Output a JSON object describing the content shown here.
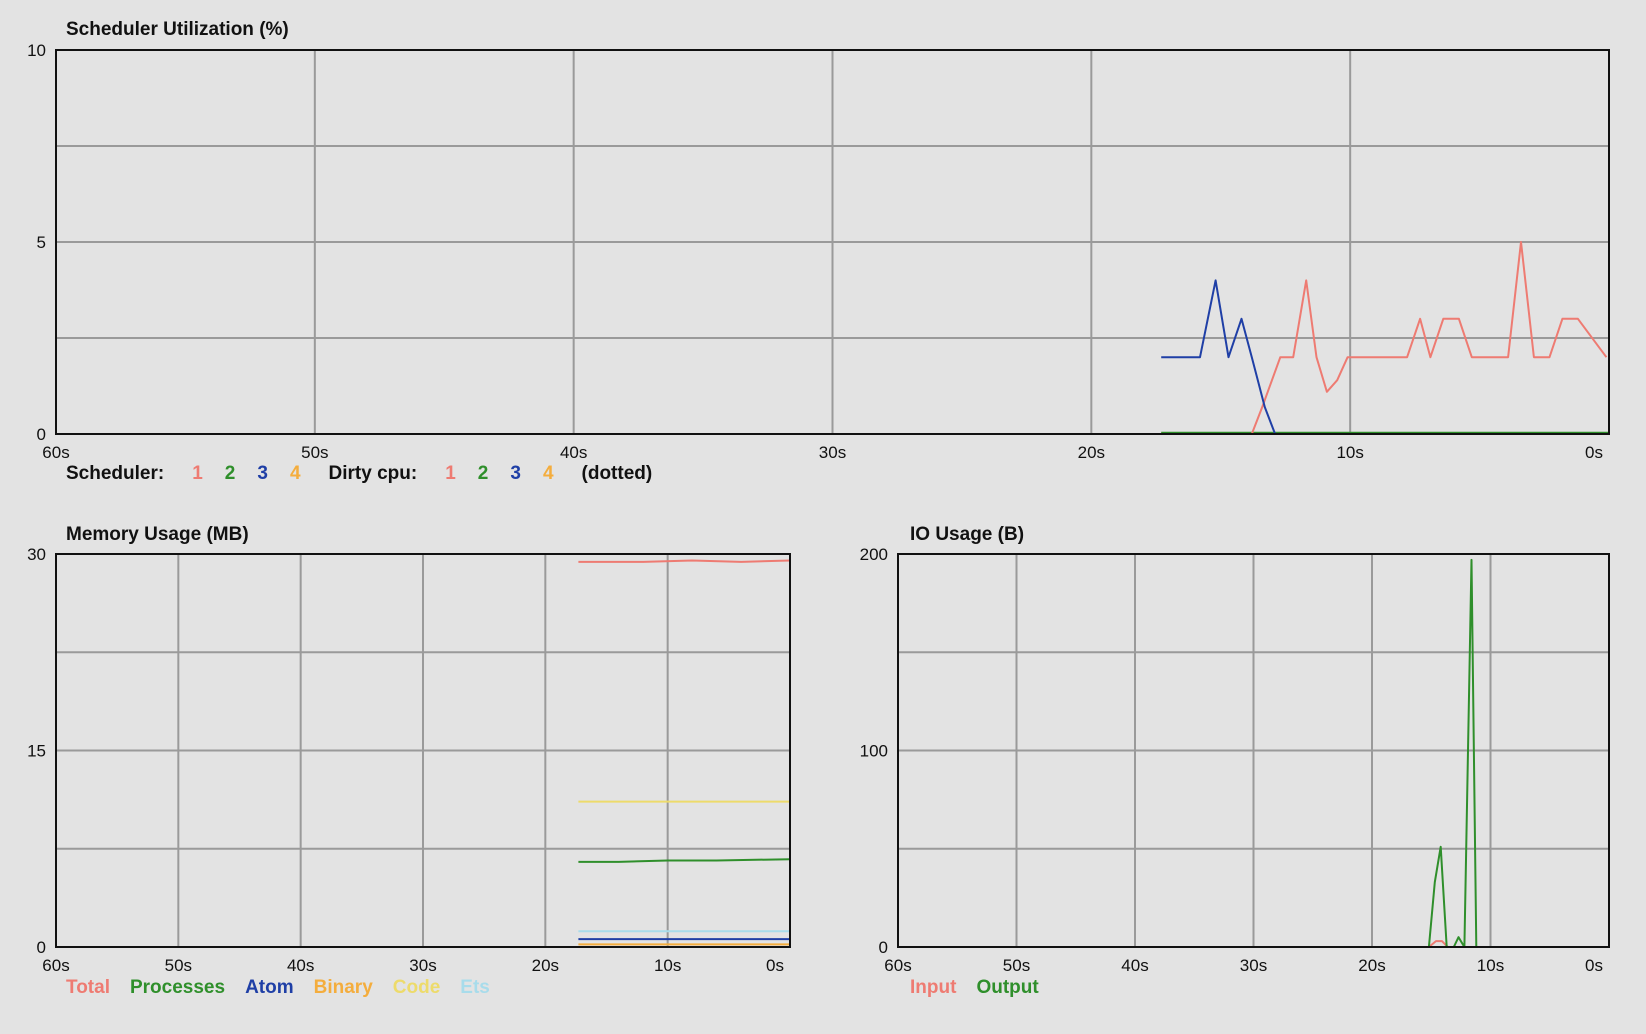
{
  "colors": {
    "red": "#ee7b72",
    "green": "#2f8f2b",
    "blue": "#1f3fa6",
    "orange": "#f4ad3d",
    "yellow": "#eddb6b",
    "cyan": "#a8dceb"
  },
  "chart_data": [
    {
      "id": "scheduler",
      "type": "line",
      "title": "Scheduler Utilization (%)",
      "ylim": [
        0,
        10
      ],
      "yticks": [
        "0",
        "5",
        "10"
      ],
      "xticks": [
        "60s",
        "50s",
        "40s",
        "30s",
        "20s",
        "10s",
        "0s"
      ],
      "xlim": [
        60,
        0
      ],
      "grid": true,
      "legend": {
        "placement": "bottom-left",
        "label_scheduler": "Scheduler:",
        "label_dirty": "Dirty cpu:",
        "label_dotted": "(dotted)",
        "scheduler_items": [
          {
            "text": "1",
            "color": "#ee7b72"
          },
          {
            "text": "2",
            "color": "#2f8f2b"
          },
          {
            "text": "3",
            "color": "#1f3fa6"
          },
          {
            "text": "4",
            "color": "#f4ad3d"
          }
        ],
        "dirty_items": [
          {
            "text": "1",
            "color": "#ee7b72"
          },
          {
            "text": "2",
            "color": "#2f8f2b"
          },
          {
            "text": "3",
            "color": "#1f3fa6"
          },
          {
            "text": "4",
            "color": "#f4ad3d"
          }
        ]
      },
      "series": [
        {
          "color": "#f4ad3d",
          "x": [
            17.3,
            0
          ],
          "y": [
            0.02,
            0.02
          ]
        },
        {
          "color": "#2f8f2b",
          "x": [
            17.3,
            0
          ],
          "y": [
            0.03,
            0.03
          ]
        },
        {
          "color": "#ee7b72",
          "x": [
            17.3,
            13.8,
            13.4,
            12.7,
            12.2,
            11.7,
            11.3,
            10.9,
            10.5,
            10.1,
            7.8,
            7.3,
            6.9,
            6.4,
            5.8,
            5.3,
            4.8,
            3.9,
            3.4,
            2.9,
            2.3,
            1.8,
            1.2,
            0.1
          ],
          "y": [
            0.0,
            0.0,
            0.7,
            2.0,
            2.0,
            4.0,
            2.0,
            1.1,
            1.4,
            2.0,
            2.0,
            3.0,
            2.0,
            3.0,
            3.0,
            2.0,
            2.0,
            2.0,
            5.0,
            2.0,
            2.0,
            3.0,
            3.0,
            2.0
          ]
        },
        {
          "color": "#1f3fa6",
          "x": [
            17.3,
            15.8,
            15.2,
            14.7,
            14.2,
            13.8,
            13.3,
            12.9,
            12.4,
            11.9,
            11.3,
            10.7,
            0.1
          ],
          "y": [
            2.0,
            2.0,
            4.0,
            2.0,
            3.0,
            2.0,
            0.7,
            0.0,
            0.0,
            0.0,
            0.0,
            0.0,
            0.0
          ]
        }
      ]
    },
    {
      "id": "memory",
      "type": "line",
      "title": "Memory Usage (MB)",
      "ylim": [
        0,
        30
      ],
      "yticks": [
        "0",
        "15",
        "30"
      ],
      "xticks": [
        "60s",
        "50s",
        "40s",
        "30s",
        "20s",
        "10s",
        "0s"
      ],
      "xlim": [
        60,
        0
      ],
      "grid": true,
      "legend": {
        "placement": "bottom-left",
        "items": [
          {
            "text": "Total",
            "color": "#ee7b72"
          },
          {
            "text": "Processes",
            "color": "#2f8f2b"
          },
          {
            "text": "Atom",
            "color": "#1f3fa6"
          },
          {
            "text": "Binary",
            "color": "#f4ad3d"
          },
          {
            "text": "Code",
            "color": "#eddb6b"
          },
          {
            "text": "Ets",
            "color": "#a8dceb"
          }
        ]
      },
      "series": [
        {
          "color": "#ee7b72",
          "x": [
            17.3,
            12,
            8,
            4,
            0
          ],
          "y": [
            29.4,
            29.4,
            29.5,
            29.4,
            29.5
          ]
        },
        {
          "color": "#eddb6b",
          "x": [
            17.3,
            0
          ],
          "y": [
            11.1,
            11.1
          ]
        },
        {
          "color": "#2f8f2b",
          "x": [
            17.3,
            14,
            10,
            6,
            0
          ],
          "y": [
            6.5,
            6.5,
            6.6,
            6.6,
            6.7
          ]
        },
        {
          "color": "#a8dceb",
          "x": [
            17.3,
            0
          ],
          "y": [
            1.2,
            1.2
          ]
        },
        {
          "color": "#1f3fa6",
          "x": [
            17.3,
            0
          ],
          "y": [
            0.6,
            0.6
          ]
        },
        {
          "color": "#f4ad3d",
          "x": [
            17.3,
            0
          ],
          "y": [
            0.2,
            0.2
          ]
        }
      ]
    },
    {
      "id": "io",
      "type": "line",
      "title": "IO Usage (B)",
      "ylim": [
        0,
        200
      ],
      "yticks": [
        "0",
        "100",
        "200"
      ],
      "xticks": [
        "60s",
        "50s",
        "40s",
        "30s",
        "20s",
        "10s",
        "0s"
      ],
      "xlim": [
        60,
        0
      ],
      "grid": true,
      "legend": {
        "placement": "bottom-left",
        "items": [
          {
            "text": "Input",
            "color": "#ee7b72"
          },
          {
            "text": "Output",
            "color": "#2f8f2b"
          }
        ]
      },
      "series": [
        {
          "color": "#ee7b72",
          "x": [
            17.3,
            15.2,
            14.6,
            14.1,
            13.6,
            0
          ],
          "y": [
            0,
            0,
            3,
            3,
            0,
            0
          ]
        },
        {
          "color": "#2f8f2b",
          "x": [
            17.3,
            15.2,
            14.7,
            14.2,
            13.7,
            13.1,
            12.7,
            12.2,
            11.6,
            11.2,
            10.7,
            0
          ],
          "y": [
            0,
            0,
            33,
            51,
            0,
            0,
            5,
            0,
            197,
            0,
            0,
            0
          ]
        }
      ]
    }
  ]
}
